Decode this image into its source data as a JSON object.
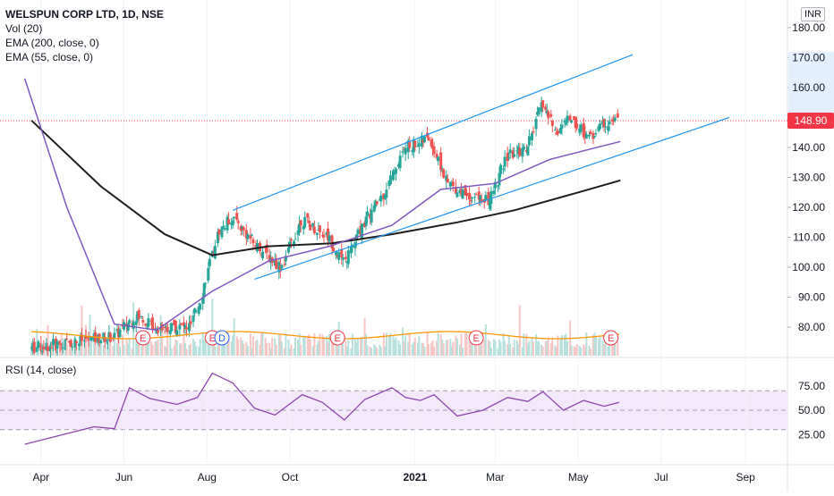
{
  "header": {
    "symbol": "WELSPUN CORP LTD, 1D, NSE",
    "indicators": [
      "Vol (20)",
      "EMA (200, close, 0)",
      "EMA (55, close, 0)"
    ],
    "currency_button": "INR"
  },
  "rsi": {
    "label": "RSI (14, close)",
    "ticks": [
      "75.00",
      "50.00",
      "25.00"
    ]
  },
  "price_axis": {
    "ticks": [
      "180.00",
      "170.00",
      "160.00",
      "150.00",
      "140.00",
      "130.00",
      "120.00",
      "110.00",
      "100.00",
      "90.00",
      "80.00"
    ],
    "last_price": "148.90"
  },
  "time_axis": {
    "ticks": [
      "Apr",
      "Jun",
      "Aug",
      "Oct",
      "2021",
      "Mar",
      "May",
      "Jul",
      "Sep"
    ]
  },
  "colors": {
    "up": "#26a69a",
    "down": "#ef5350",
    "ema200": "#1e1e1e",
    "ema55": "#7e57c2",
    "rsi": "#8e44ad",
    "channel": "#2196f3",
    "volume_ma": "#ff9800",
    "last_price": "#f23645"
  },
  "chart_data": {
    "type": "candlestick",
    "ylim": [
      72,
      182
    ],
    "events": [
      "E",
      "E",
      "D",
      "E",
      "E",
      "E"
    ],
    "price": [
      {
        "date": "2020-03-25",
        "value": 73
      },
      {
        "date": "2020-05-26",
        "value": 77
      },
      {
        "date": "2020-06-10",
        "value": 84
      },
      {
        "date": "2020-06-25",
        "value": 80
      },
      {
        "date": "2020-07-20",
        "value": 80
      },
      {
        "date": "2020-07-28",
        "value": 90
      },
      {
        "date": "2020-08-10",
        "value": 112
      },
      {
        "date": "2020-08-20",
        "value": 117
      },
      {
        "date": "2020-09-05",
        "value": 108
      },
      {
        "date": "2020-09-25",
        "value": 100
      },
      {
        "date": "2020-10-10",
        "value": 116
      },
      {
        "date": "2020-10-30",
        "value": 110
      },
      {
        "date": "2020-11-10",
        "value": 101
      },
      {
        "date": "2020-11-25",
        "value": 115
      },
      {
        "date": "2020-12-10",
        "value": 125
      },
      {
        "date": "2020-12-25",
        "value": 140
      },
      {
        "date": "2021-01-12",
        "value": 143
      },
      {
        "date": "2021-01-25",
        "value": 128
      },
      {
        "date": "2021-02-10",
        "value": 124
      },
      {
        "date": "2021-02-25",
        "value": 122
      },
      {
        "date": "2021-03-10",
        "value": 137
      },
      {
        "date": "2021-03-25",
        "value": 140
      },
      {
        "date": "2021-04-05",
        "value": 155
      },
      {
        "date": "2021-04-15",
        "value": 145
      },
      {
        "date": "2021-04-25",
        "value": 150
      },
      {
        "date": "2021-05-10",
        "value": 143
      },
      {
        "date": "2021-05-20",
        "value": 148
      },
      {
        "date": "2021-05-31",
        "value": 148.9
      }
    ],
    "ema200": [
      {
        "date": "2020-03-25",
        "value": 149
      },
      {
        "date": "2020-05-15",
        "value": 127
      },
      {
        "date": "2020-07-01",
        "value": 111
      },
      {
        "date": "2020-08-05",
        "value": 104
      },
      {
        "date": "2020-09-15",
        "value": 107
      },
      {
        "date": "2020-11-01",
        "value": 108
      },
      {
        "date": "2020-12-15",
        "value": 111
      },
      {
        "date": "2021-02-01",
        "value": 115
      },
      {
        "date": "2021-03-15",
        "value": 119
      },
      {
        "date": "2021-05-01",
        "value": 125
      },
      {
        "date": "2021-06-01",
        "value": 129
      }
    ],
    "ema55": [
      {
        "date": "2020-03-20",
        "value": 163
      },
      {
        "date": "2020-04-20",
        "value": 120
      },
      {
        "date": "2020-05-25",
        "value": 81
      },
      {
        "date": "2020-06-25",
        "value": 79
      },
      {
        "date": "2020-08-05",
        "value": 92
      },
      {
        "date": "2020-09-15",
        "value": 102
      },
      {
        "date": "2020-10-30",
        "value": 107
      },
      {
        "date": "2020-12-15",
        "value": 114
      },
      {
        "date": "2021-01-20",
        "value": 126
      },
      {
        "date": "2021-03-01",
        "value": 128
      },
      {
        "date": "2021-04-10",
        "value": 136
      },
      {
        "date": "2021-06-01",
        "value": 142
      }
    ],
    "channel": [
      {
        "name": "upper",
        "points": [
          {
            "date": "2020-08-20",
            "value": 119
          },
          {
            "date": "2021-06-10",
            "value": 171
          }
        ]
      },
      {
        "name": "lower",
        "points": [
          {
            "date": "2020-09-05",
            "value": 96
          },
          {
            "date": "2021-08-20",
            "value": 150
          }
        ]
      }
    ],
    "rsi_ylim": [
      10,
      95
    ],
    "rsi_bands": [
      70,
      50,
      30
    ],
    "rsi_series": [
      {
        "date": "2020-03-20",
        "value": 15
      },
      {
        "date": "2020-05-10",
        "value": 33
      },
      {
        "date": "2020-05-25",
        "value": 31
      },
      {
        "date": "2020-06-05",
        "value": 73
      },
      {
        "date": "2020-06-20",
        "value": 62
      },
      {
        "date": "2020-07-10",
        "value": 56
      },
      {
        "date": "2020-07-25",
        "value": 63
      },
      {
        "date": "2020-08-05",
        "value": 88
      },
      {
        "date": "2020-08-20",
        "value": 78
      },
      {
        "date": "2020-09-05",
        "value": 52
      },
      {
        "date": "2020-09-20",
        "value": 45
      },
      {
        "date": "2020-10-10",
        "value": 66
      },
      {
        "date": "2020-10-25",
        "value": 58
      },
      {
        "date": "2020-11-10",
        "value": 40
      },
      {
        "date": "2020-11-25",
        "value": 61
      },
      {
        "date": "2020-12-15",
        "value": 73
      },
      {
        "date": "2020-12-25",
        "value": 63
      },
      {
        "date": "2021-01-05",
        "value": 60
      },
      {
        "date": "2021-01-15",
        "value": 66
      },
      {
        "date": "2021-02-01",
        "value": 44
      },
      {
        "date": "2021-02-20",
        "value": 50
      },
      {
        "date": "2021-03-10",
        "value": 63
      },
      {
        "date": "2021-03-25",
        "value": 59
      },
      {
        "date": "2021-04-05",
        "value": 69
      },
      {
        "date": "2021-04-20",
        "value": 50
      },
      {
        "date": "2021-05-05",
        "value": 60
      },
      {
        "date": "2021-05-20",
        "value": 54
      },
      {
        "date": "2021-05-31",
        "value": 58
      }
    ]
  }
}
